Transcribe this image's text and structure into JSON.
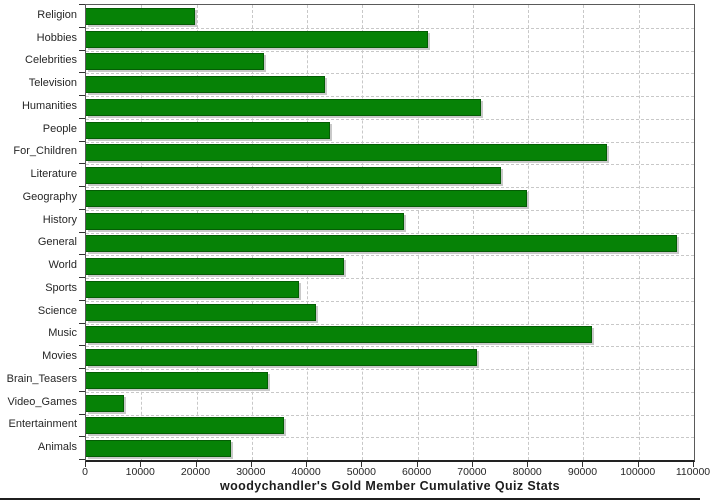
{
  "chart_data": {
    "type": "bar",
    "orientation": "horizontal",
    "title": "woodychandler's Gold Member Cumulative Quiz Stats",
    "categories": [
      "Religion",
      "Hobbies",
      "Celebrities",
      "Television",
      "Humanities",
      "People",
      "For_Children",
      "Literature",
      "Geography",
      "History",
      "General",
      "World",
      "Sports",
      "Science",
      "Music",
      "Movies",
      "Brain_Teasers",
      "Video_Games",
      "Entertainment",
      "Animals"
    ],
    "values": [
      19800,
      61900,
      32200,
      43300,
      71500,
      44100,
      94300,
      75100,
      79700,
      57500,
      107000,
      46700,
      38500,
      41700,
      91600,
      70800,
      33000,
      6900,
      35900,
      26300
    ],
    "xlim": [
      0,
      110000
    ],
    "x_ticks": [
      0,
      10000,
      20000,
      30000,
      40000,
      50000,
      60000,
      70000,
      80000,
      90000,
      100000,
      110000
    ],
    "xlabel": "",
    "ylabel": "",
    "grid": "dashed",
    "legend": "none",
    "bar_color": "#068206",
    "shadow_color": "#c9c9c9",
    "gridline_color": "#c8c8c8",
    "axis_color": "#333333"
  }
}
